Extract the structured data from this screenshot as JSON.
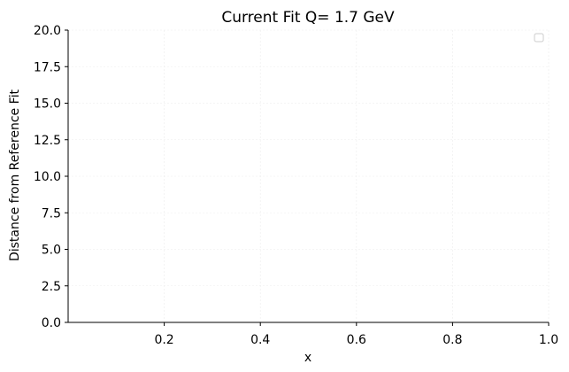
{
  "chart_data": {
    "type": "line",
    "title": "Current Fit Q= 1.7 GeV",
    "xlabel": "x",
    "ylabel": "Distance from Reference Fit",
    "xlim": [
      0.0,
      1.0
    ],
    "ylim": [
      0,
      20
    ],
    "xticks": [
      0.2,
      0.4,
      0.6,
      0.8,
      1.0
    ],
    "xtick_labels": [
      "0.2",
      "0.4",
      "0.6",
      "0.8",
      "1.0"
    ],
    "yticks": [
      0.0,
      2.5,
      5.0,
      7.5,
      10.0,
      12.5,
      15.0,
      17.5,
      20.0
    ],
    "ytick_labels": [
      "0.0",
      "2.5",
      "5.0",
      "7.5",
      "10.0",
      "12.5",
      "15.0",
      "17.5",
      "20.0"
    ],
    "series": [],
    "grid": true,
    "legend": "top-right",
    "legend_entries": []
  }
}
